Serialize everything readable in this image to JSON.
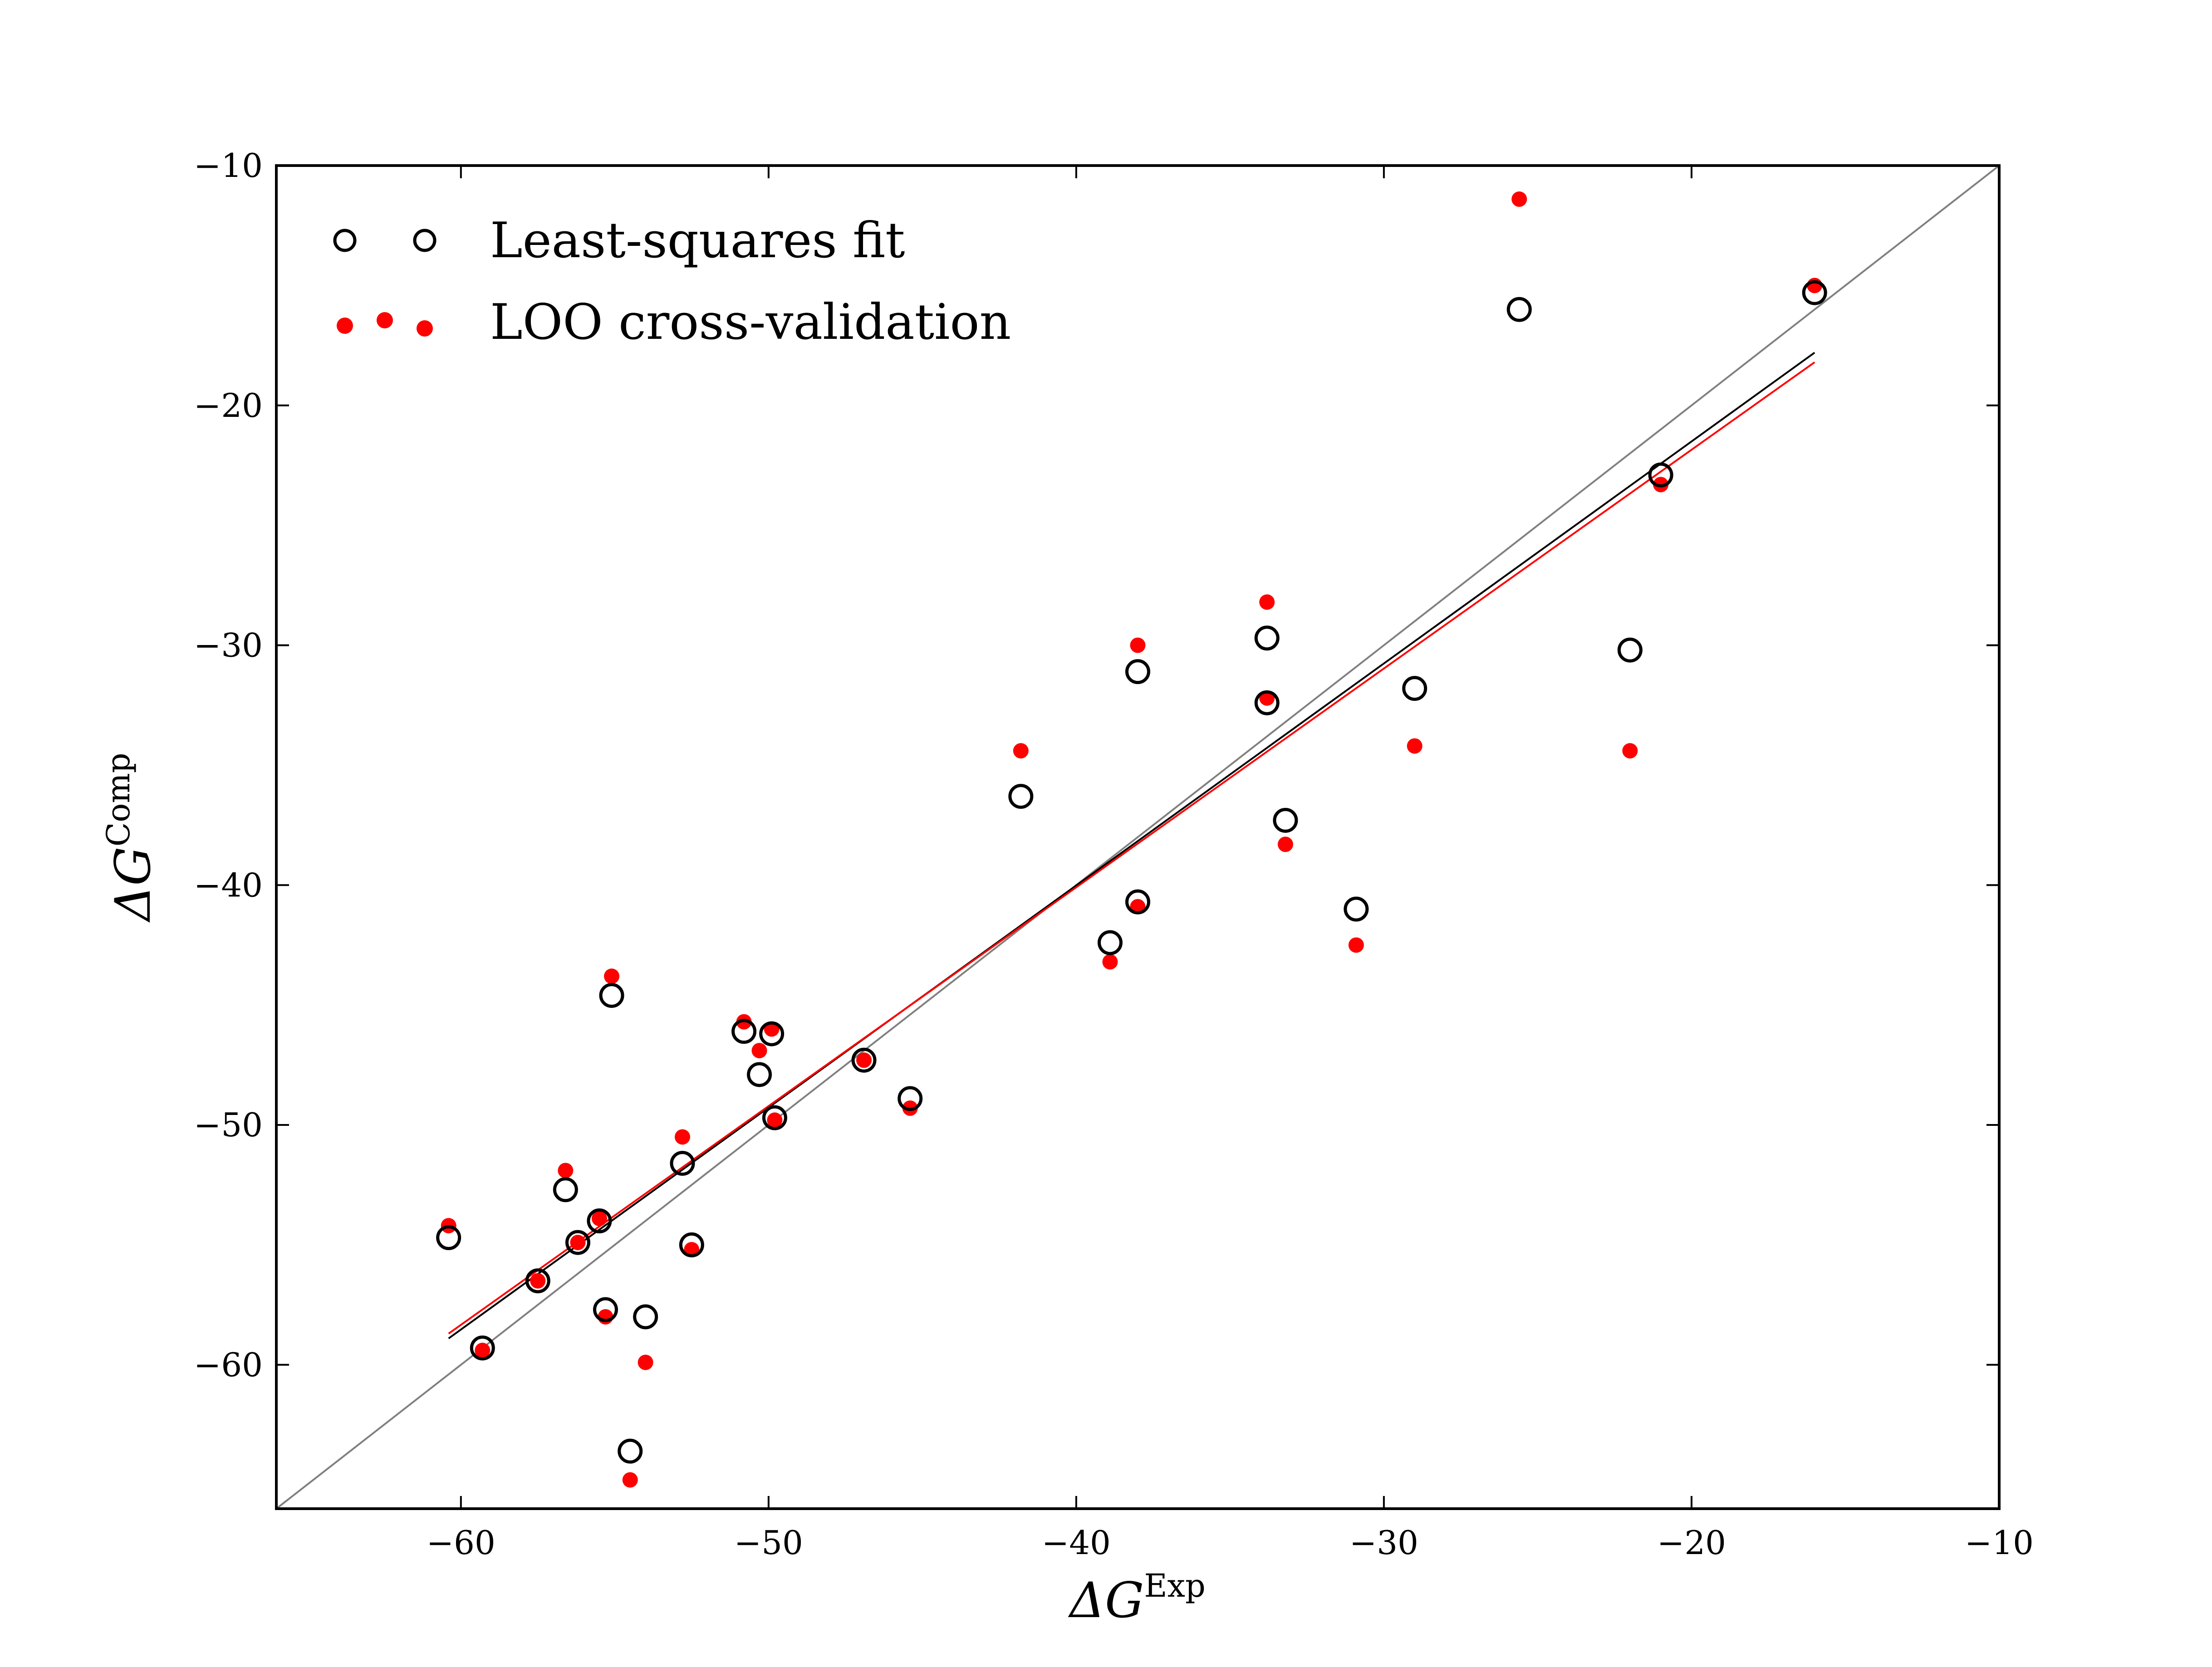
{
  "chart_data": {
    "type": "scatter",
    "title": "",
    "xlabel": "ΔG^Exp",
    "xlabel_parts": {
      "base": "ΔG",
      "sup": "Exp"
    },
    "ylabel": "ΔG^Comp",
    "ylabel_parts": {
      "base": "ΔG",
      "sup": "Comp"
    },
    "xlim": [
      -66,
      -10
    ],
    "ylim": [
      -66,
      -10
    ],
    "xticks": [
      -60,
      -50,
      -40,
      -30,
      -20,
      -10
    ],
    "yticks": [
      -10,
      -20,
      -30,
      -40,
      -50,
      -60
    ],
    "xtick_labels": [
      "−60",
      "−50",
      "−40",
      "−30",
      "−20",
      "−10"
    ],
    "ytick_labels": [
      "−10",
      "−20",
      "−30",
      "−40",
      "−50",
      "−60"
    ],
    "grid": false,
    "legend_placement": "top-left",
    "x": [
      -60.4,
      -59.3,
      -57.5,
      -56.6,
      -56.2,
      -55.5,
      -55.3,
      -55.1,
      -54.5,
      -54.0,
      -52.8,
      -52.5,
      -50.8,
      -50.3,
      -49.9,
      -49.8,
      -46.9,
      -45.4,
      -41.8,
      -38.9,
      -38.0,
      -38.0,
      -33.8,
      -33.8,
      -33.2,
      -30.9,
      -29.0,
      -25.6,
      -22.0,
      -21.0,
      -16.0
    ],
    "series": [
      {
        "name": "Least-squares fit",
        "marker": "open-circle",
        "color": "#000000",
        "values": [
          -54.7,
          -59.3,
          -56.5,
          -52.7,
          -54.9,
          -54.0,
          -57.7,
          -44.6,
          -63.6,
          -58.0,
          -51.6,
          -55.0,
          -46.1,
          -47.9,
          -46.2,
          -49.7,
          -47.3,
          -48.9,
          -36.3,
          -42.4,
          -31.1,
          -40.7,
          -29.7,
          -32.4,
          -37.3,
          -41.0,
          -31.8,
          -16.0,
          -30.2,
          -22.9,
          -15.3
        ]
      },
      {
        "name": "LOO cross-validation",
        "marker": "filled-dot",
        "color": "#ff0000",
        "values": [
          -54.2,
          -59.4,
          -56.5,
          -51.9,
          -54.9,
          -53.9,
          -58.0,
          -43.8,
          -64.8,
          -59.9,
          -50.5,
          -55.2,
          -45.7,
          -46.9,
          -46.0,
          -49.8,
          -47.3,
          -49.3,
          -34.4,
          -43.2,
          -30.0,
          -40.9,
          -28.2,
          -32.2,
          -38.3,
          -42.5,
          -34.2,
          -11.4,
          -34.4,
          -23.3,
          -15.0
        ]
      }
    ],
    "lines": [
      {
        "type": "identity",
        "color": "#808080",
        "x": [
          -66,
          -10
        ],
        "y": [
          -66,
          -10
        ]
      },
      {
        "type": "fit",
        "color": "#000000",
        "x": [
          -60.4,
          -16.0
        ],
        "y": [
          -58.9,
          -17.8
        ]
      },
      {
        "type": "fit",
        "color": "#ff0000",
        "x": [
          -60.4,
          -16.0
        ],
        "y": [
          -58.7,
          -18.2
        ]
      }
    ]
  }
}
